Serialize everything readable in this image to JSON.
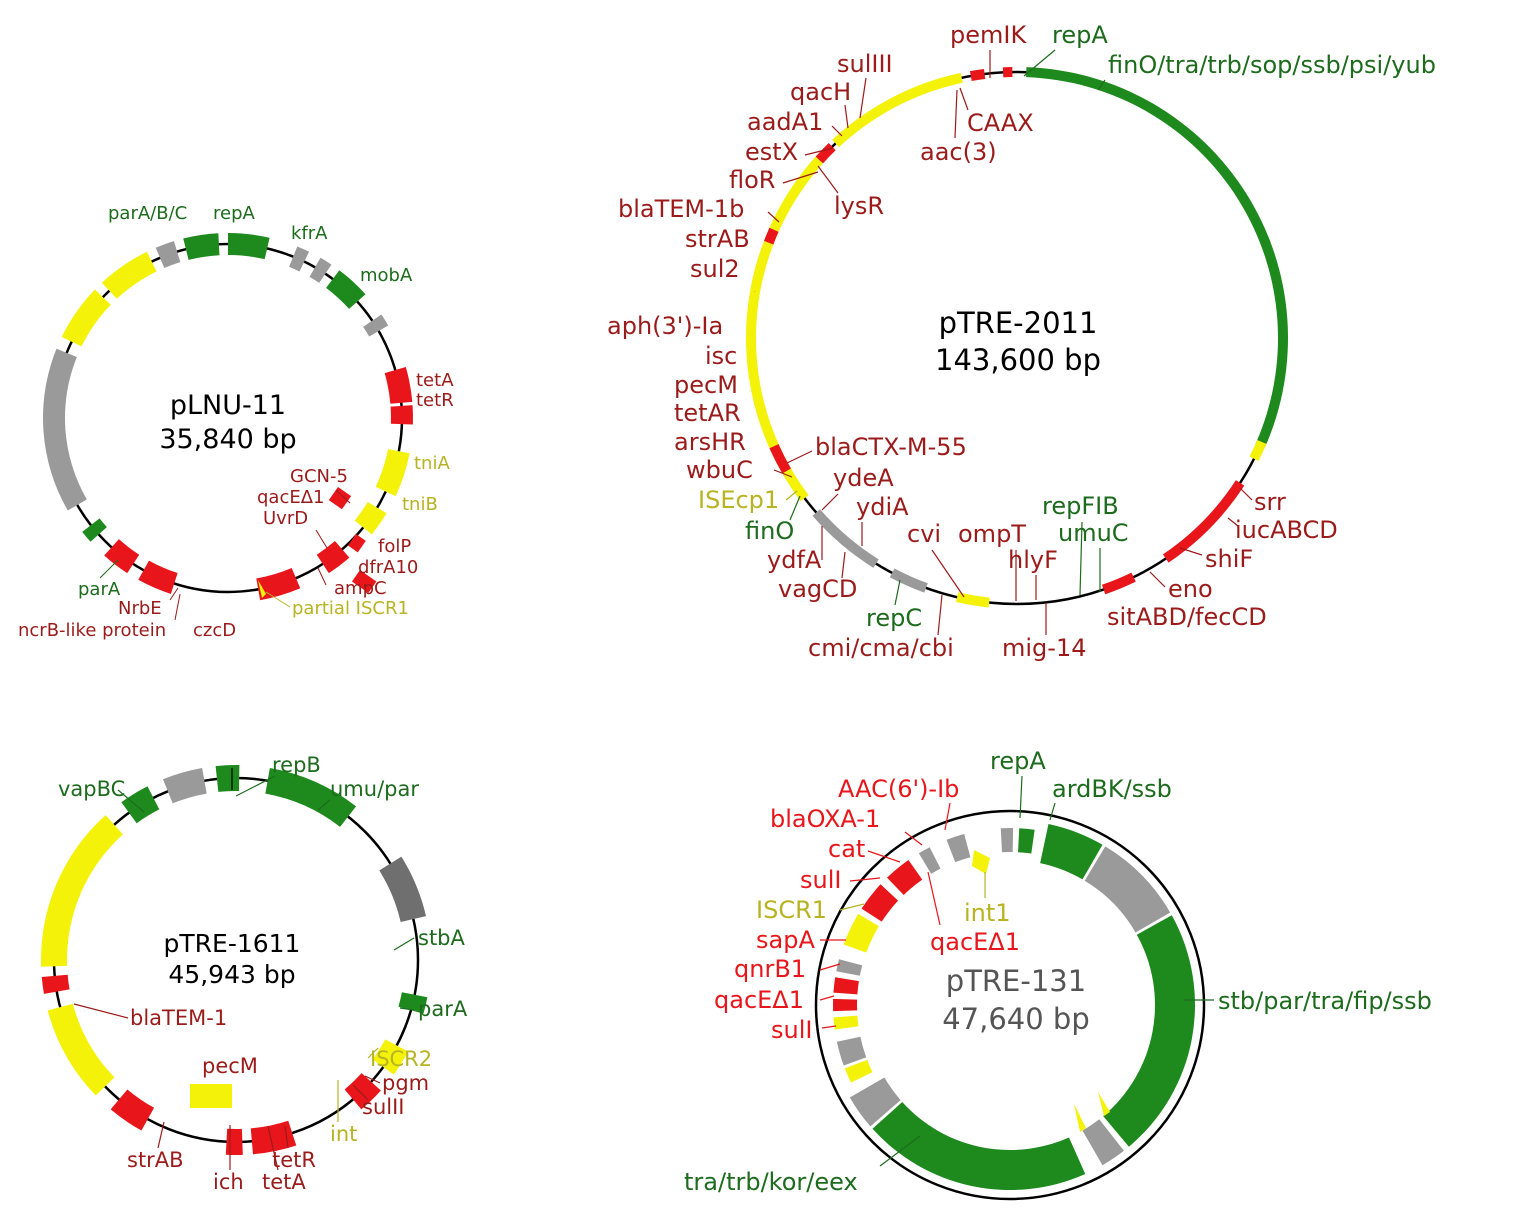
{
  "colors": {
    "green": "#1e8a1e",
    "red": "#e8161b",
    "yellow": "#f5f20a",
    "gray": "#9a9a9a",
    "darkgray": "#6f6f6f",
    "label_red": "#9b1b1b",
    "label_green": "#1d6b1d",
    "label_yellow": "#b8b322",
    "backbone": "#000000"
  },
  "plasmids": {
    "plnu11": {
      "name": "pLNU-11",
      "size": "35,840 bp",
      "labels": {
        "parabc": "parA/B/C",
        "repa": "repA",
        "kfra": "kfrA",
        "moba": "mobA",
        "teta": "tetA",
        "tetr": "tetR",
        "tnia": "tniA",
        "tnib": "tniB",
        "gcn5": "GCN-5",
        "qace": "qacEΔ1",
        "uvrd": "UvrD",
        "folp": "folP",
        "dfra10": "dfrA10",
        "ampc": "ampC",
        "iscr1": "partial ISCR1",
        "czcd": "czcD",
        "para": "parA",
        "nrbe": "NrbE",
        "ncrb": "ncrB-like protein"
      }
    },
    "ptre2011": {
      "name": "pTRE-2011",
      "size": "143,600 bp",
      "labels": {
        "pemik": "pemIK",
        "repa": "repA",
        "fino_tra": "finO/tra/trb/sop/ssb/psi/yub",
        "sulIII": "sulIII",
        "qach": "qacH",
        "caax": "CAAX",
        "aac3": "aac(3)",
        "aada1": "aadA1",
        "estx": "estX",
        "flor": "floR",
        "lysr": "lysR",
        "blatem1b": "blaTEM-1b",
        "strab": "strAB",
        "sul2": "sul2",
        "aph3": "aph(3')-Ia",
        "isc": "isc",
        "pecm": "pecM",
        "tetar": "tetAR",
        "arshr": "arsHR",
        "blactx": "blaCTX-M-55",
        "wbuc": "wbuC",
        "ydea": "ydeA",
        "isecp1": "ISEcp1",
        "ydia": "ydiA",
        "fino": "finO",
        "ydfa": "ydfA",
        "vagcd": "vagCD",
        "cvi": "cvi",
        "ompt": "ompT",
        "hlyf": "hlyF",
        "repfib": "repFIB",
        "umuc": "umuC",
        "repc": "repC",
        "cmi": "cmi/cma/cbi",
        "mig14": "mig-14",
        "srr": "srr",
        "iucabcd": "iucABCD",
        "shif": "shiF",
        "eno": "eno",
        "sitabd": "sitABD/fecCD"
      }
    },
    "ptre1611": {
      "name": "pTRE-1611",
      "size": "45,943 bp",
      "labels": {
        "vapbc": "vapBC",
        "repb": "repB",
        "umupar": "umu/par",
        "stba": "stbA",
        "para": "parA",
        "iscr2": "ISCR2",
        "pgm": "pgm",
        "sulII": "sulII",
        "int": "int",
        "blatem1": "blaTEM-1",
        "pecm": "pecM",
        "strab": "strAB",
        "ich": "ich",
        "tetr": "tetR",
        "teta": "tetA"
      }
    },
    "ptre131": {
      "name": "pTRE-131",
      "size": "47,640 bp",
      "labels": {
        "repa": "repA",
        "ardbk": "ardBK/ssb",
        "aac6": "AAC(6')-Ib",
        "blaoxa1": "blaOXA-1",
        "cat": "cat",
        "suli1": "sulI",
        "int1": "int1",
        "iscr1": "ISCR1",
        "qace1": "qacEΔ1",
        "sapa": "sapA",
        "qnrb1": "qnrB1",
        "qace2": "qacEΔ1",
        "suli2": "sulI",
        "stb": "stb/par/tra/fip/ssb",
        "traeex": "tra/trb/kor/eex"
      }
    }
  }
}
